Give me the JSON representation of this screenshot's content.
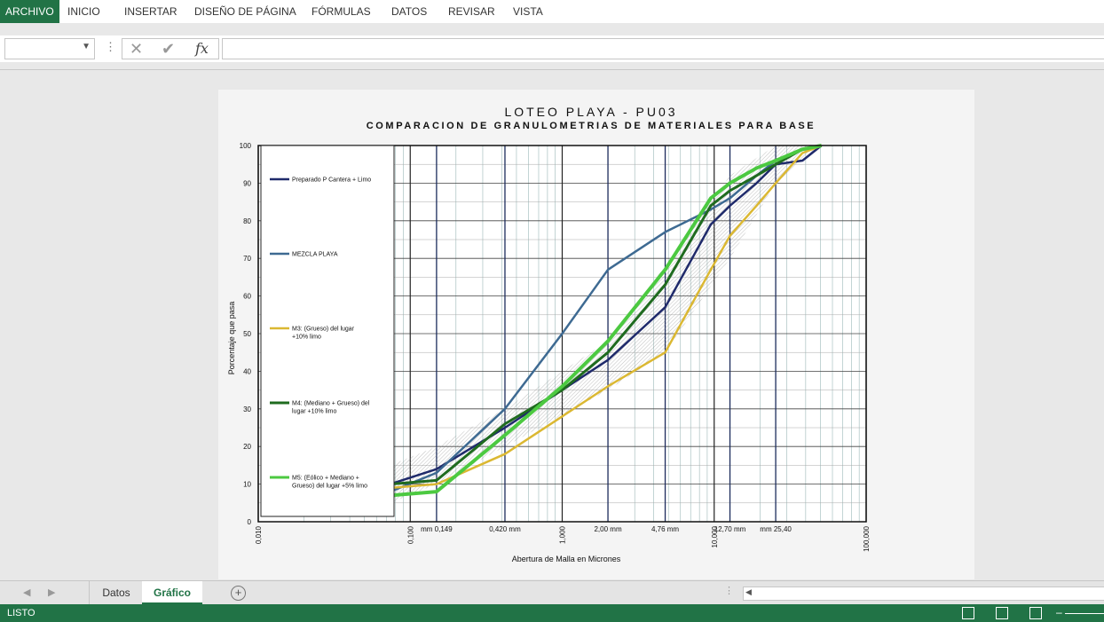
{
  "ribbon": {
    "tabs": [
      "ARCHIVO",
      "INICIO",
      "INSERTAR",
      "DISEÑO DE PÁGINA",
      "FÓRMULAS",
      "DATOS",
      "REVISAR",
      "VISTA"
    ]
  },
  "formula_bar": {
    "name_box": "",
    "fx": "fx",
    "content": ""
  },
  "sheets": {
    "tabs": [
      "Datos",
      "Gráfico"
    ],
    "active": "Gráfico"
  },
  "status": {
    "ready": "LISTO"
  },
  "chart_data": {
    "type": "line",
    "title": "LOTEO PLAYA - PU03",
    "subtitle": "COMPARACION DE GRANULOMETRIAS DE MATERIALES PARA BASE",
    "xlabel": "Abertura de Malla en Micrones",
    "ylabel": "Porcentaje que pasa",
    "xscale": "log",
    "xlim": [
      0.01,
      100
    ],
    "ylim": [
      0,
      100
    ],
    "yticks": [
      0,
      10,
      20,
      30,
      40,
      50,
      60,
      70,
      80,
      90,
      100
    ],
    "xtick_labels": [
      {
        "x": 0.01,
        "label": "0,010"
      },
      {
        "x": 0.1,
        "label": "0,100"
      },
      {
        "x": 1,
        "label": "1,000"
      },
      {
        "x": 10,
        "label": "10,000"
      },
      {
        "x": 100,
        "label": "100,000"
      }
    ],
    "sieve_labels": [
      {
        "x": 0.149,
        "label": "mm 0,149"
      },
      {
        "x": 0.42,
        "label": "0,420 mm"
      },
      {
        "x": 2.0,
        "label": "2,00 mm"
      },
      {
        "x": 4.76,
        "label": "4,76 mm"
      },
      {
        "x": 12.7,
        "label": "12,70 mm"
      },
      {
        "x": 25.4,
        "label": "mm 25,40"
      }
    ],
    "grid": true,
    "legend": "left",
    "band": {
      "lower": [
        [
          0.074,
          5
        ],
        [
          0.149,
          10
        ],
        [
          0.42,
          20
        ],
        [
          2.0,
          35
        ],
        [
          4.76,
          45
        ],
        [
          12.7,
          70
        ],
        [
          25.4,
          90
        ],
        [
          50,
          100
        ]
      ],
      "upper": [
        [
          0.074,
          15
        ],
        [
          0.149,
          20
        ],
        [
          0.42,
          30
        ],
        [
          2.0,
          48
        ],
        [
          4.76,
          68
        ],
        [
          12.7,
          92
        ],
        [
          25.4,
          100
        ],
        [
          50,
          100
        ]
      ]
    },
    "series": [
      {
        "name": "Preparado P Cantera + Limo",
        "color": "#1f2a6b",
        "width": 2.5,
        "x": [
          0.074,
          0.149,
          0.42,
          1.0,
          2.0,
          4.76,
          9.5,
          12.7,
          19,
          25.4,
          38.1,
          50.8
        ],
        "y": [
          10,
          14,
          25,
          35,
          43,
          57,
          79,
          84,
          90,
          95,
          96,
          100
        ]
      },
      {
        "name": "MEZCLA PLAYA",
        "color": "#3e6a92",
        "width": 2.5,
        "x": [
          0.074,
          0.149,
          0.42,
          1.0,
          2.0,
          4.76,
          9.5,
          12.7,
          19,
          25.4,
          38.1,
          50.8
        ],
        "y": [
          8,
          13,
          30,
          50,
          67,
          77,
          83,
          86,
          92,
          96,
          99,
          100
        ]
      },
      {
        "name": "M3: (Grueso) del lugar +10% limo",
        "color": "#dbb832",
        "width": 2.5,
        "x": [
          0.074,
          0.149,
          0.42,
          1.0,
          2.0,
          4.76,
          9.5,
          12.7,
          19,
          25.4,
          38.1,
          50.8
        ],
        "y": [
          9,
          10,
          18,
          28,
          36,
          45,
          67,
          76,
          84,
          90,
          98,
          100
        ]
      },
      {
        "name": "M4: (Mediano + Grueso) del lugar +10% limo",
        "color": "#1f6b1f",
        "width": 3,
        "x": [
          0.074,
          0.149,
          0.42,
          1.0,
          2.0,
          4.76,
          9.5,
          12.7,
          19,
          25.4,
          38.1,
          50.8
        ],
        "y": [
          10,
          11,
          26,
          35,
          45,
          63,
          84,
          88,
          92,
          95,
          99,
          100
        ]
      },
      {
        "name": "M5: (Eólico + Mediano + Grueso) del lugar +5% limo",
        "color": "#4cc941",
        "width": 4,
        "x": [
          0.074,
          0.149,
          0.42,
          1.0,
          2.0,
          4.76,
          9.5,
          12.7,
          19,
          25.4,
          38.1,
          50.8
        ],
        "y": [
          7,
          8,
          23,
          36,
          48,
          67,
          86,
          90,
          94,
          96,
          99,
          100
        ]
      }
    ]
  }
}
